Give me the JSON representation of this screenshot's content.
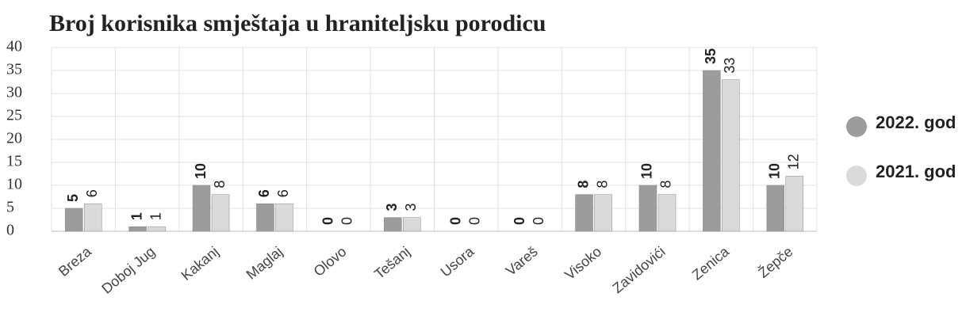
{
  "chart_data": {
    "type": "bar",
    "title": "Broj korisnika smještaja u hraniteljsku porodicu",
    "categories": [
      "Breza",
      "Doboj Jug",
      "Kakanj",
      "Maglaj",
      "Olovo",
      "Tešanj",
      "Usora",
      "Vareš",
      "Visoko",
      "Zavidovići",
      "Zenica",
      "Žepče"
    ],
    "series": [
      {
        "name": "2022. god",
        "color": "#9c9c9c",
        "values": [
          5,
          1,
          10,
          6,
          0,
          3,
          0,
          0,
          8,
          10,
          35,
          10
        ]
      },
      {
        "name": "2021. god",
        "color": "#dadada",
        "values": [
          6,
          1,
          8,
          6,
          0,
          3,
          0,
          0,
          8,
          8,
          33,
          12
        ]
      }
    ],
    "ylim": [
      0,
      40
    ],
    "yticks": [
      0,
      5,
      10,
      15,
      20,
      25,
      30,
      35,
      40
    ],
    "grid": true,
    "legend": "right"
  }
}
